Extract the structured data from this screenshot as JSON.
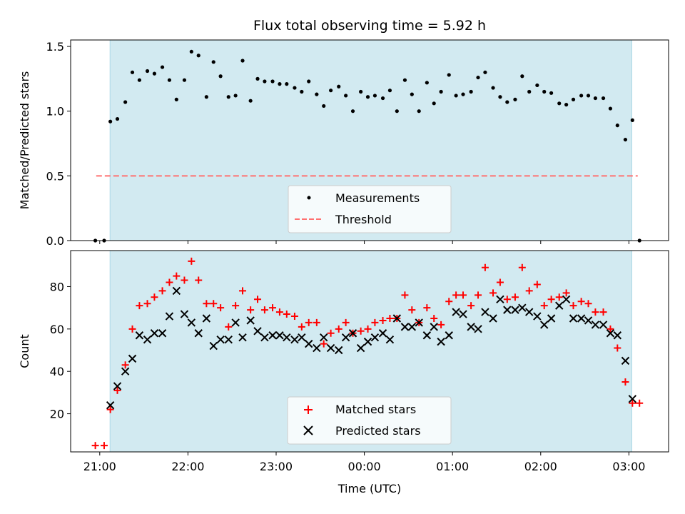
{
  "title": "Flux total observing time = 5.92 h",
  "colors": {
    "span": "#add8e6",
    "measurement": "#000000",
    "threshold": "#ff7070",
    "matched": "#ff0000",
    "predicted": "#000000"
  },
  "x_axis": {
    "label": "Time (UTC)",
    "ticks": [
      "21:00",
      "22:00",
      "23:00",
      "00:00",
      "01:00",
      "02:00",
      "03:00"
    ]
  },
  "chart_data": [
    {
      "type": "scatter",
      "ylabel": "Matched/Predicted stars",
      "ylim": [
        0,
        1.55
      ],
      "yticks": [
        "0.0",
        "0.5",
        "1.0",
        "1.5"
      ],
      "ytick_values": [
        0,
        0.5,
        1.0,
        1.5
      ],
      "x_unit": "hours since 21:00 UTC",
      "observing_span": [
        "21:07",
        "03:02"
      ],
      "threshold": 0.5,
      "legend": [
        "Measurements",
        "Threshold"
      ],
      "series": [
        {
          "name": "Measurements",
          "x": [
            -0.05,
            0.05,
            0.12,
            0.2,
            0.29,
            0.37,
            0.45,
            0.54,
            0.62,
            0.71,
            0.79,
            0.87,
            0.96,
            1.04,
            1.12,
            1.21,
            1.29,
            1.37,
            1.46,
            1.54,
            1.62,
            1.71,
            1.79,
            1.87,
            1.96,
            2.04,
            2.12,
            2.21,
            2.29,
            2.37,
            2.46,
            2.54,
            2.62,
            2.71,
            2.79,
            2.87,
            2.96,
            3.04,
            3.12,
            3.21,
            3.29,
            3.37,
            3.46,
            3.54,
            3.62,
            3.71,
            3.79,
            3.87,
            3.96,
            4.04,
            4.12,
            4.21,
            4.29,
            4.37,
            4.46,
            4.54,
            4.62,
            4.71,
            4.79,
            4.87,
            4.96,
            5.04,
            5.12,
            5.21,
            5.29,
            5.37,
            5.46,
            5.54,
            5.62,
            5.71,
            5.79,
            5.87,
            5.96,
            6.04,
            6.12
          ],
          "y": [
            0.0,
            0.0,
            0.92,
            0.94,
            1.07,
            1.3,
            1.24,
            1.31,
            1.29,
            1.34,
            1.24,
            1.09,
            1.24,
            1.46,
            1.43,
            1.11,
            1.38,
            1.27,
            1.11,
            1.12,
            1.39,
            1.08,
            1.25,
            1.23,
            1.23,
            1.21,
            1.21,
            1.18,
            1.15,
            1.23,
            1.13,
            1.04,
            1.16,
            1.19,
            1.12,
            1.0,
            1.15,
            1.11,
            1.12,
            1.1,
            1.16,
            1.0,
            1.24,
            1.13,
            1.0,
            1.22,
            1.06,
            1.15,
            1.28,
            1.12,
            1.13,
            1.15,
            1.26,
            1.3,
            1.18,
            1.11,
            1.07,
            1.09,
            1.27,
            1.15,
            1.2,
            1.15,
            1.14,
            1.06,
            1.05,
            1.09,
            1.12,
            1.12,
            1.1,
            1.1,
            1.02,
            0.89,
            0.78,
            0.93,
            0.0
          ]
        }
      ]
    },
    {
      "type": "scatter",
      "ylabel": "Count",
      "ylim": [
        2,
        97
      ],
      "yticks": [
        "20",
        "40",
        "60",
        "80"
      ],
      "ytick_values": [
        20,
        40,
        60,
        80
      ],
      "x_unit": "hours since 21:00 UTC",
      "observing_span": [
        "21:07",
        "03:02"
      ],
      "legend": [
        "Matched stars",
        "Predicted stars"
      ],
      "series": [
        {
          "name": "Matched stars",
          "x": [
            -0.05,
            0.05,
            0.12,
            0.2,
            0.29,
            0.37,
            0.45,
            0.54,
            0.62,
            0.71,
            0.79,
            0.87,
            0.96,
            1.04,
            1.12,
            1.21,
            1.29,
            1.37,
            1.46,
            1.54,
            1.62,
            1.71,
            1.79,
            1.87,
            1.96,
            2.04,
            2.12,
            2.21,
            2.29,
            2.37,
            2.46,
            2.54,
            2.62,
            2.71,
            2.79,
            2.87,
            2.96,
            3.04,
            3.12,
            3.21,
            3.29,
            3.37,
            3.46,
            3.54,
            3.62,
            3.71,
            3.79,
            3.87,
            3.96,
            4.04,
            4.12,
            4.21,
            4.29,
            4.37,
            4.46,
            4.54,
            4.62,
            4.71,
            4.79,
            4.87,
            4.96,
            5.04,
            5.12,
            5.21,
            5.29,
            5.37,
            5.46,
            5.54,
            5.62,
            5.71,
            5.79,
            5.87,
            5.96,
            6.04,
            6.12
          ],
          "y": [
            5,
            5,
            22,
            31,
            43,
            60,
            71,
            72,
            75,
            78,
            82,
            85,
            83,
            92,
            83,
            72,
            72,
            70,
            61,
            71,
            78,
            69,
            74,
            69,
            70,
            68,
            67,
            66,
            61,
            63,
            63,
            53,
            58,
            60,
            63,
            58,
            59,
            60,
            63,
            64,
            65,
            65,
            76,
            69,
            63,
            70,
            65,
            62,
            73,
            76,
            76,
            71,
            76,
            89,
            77,
            82,
            74,
            75,
            89,
            78,
            81,
            71,
            74,
            75,
            77,
            71,
            73,
            72,
            68,
            68,
            60,
            51,
            35,
            25,
            25
          ]
        },
        {
          "name": "Predicted stars",
          "x": [
            0.12,
            0.2,
            0.29,
            0.37,
            0.45,
            0.54,
            0.62,
            0.71,
            0.79,
            0.87,
            0.96,
            1.04,
            1.12,
            1.21,
            1.29,
            1.37,
            1.46,
            1.54,
            1.62,
            1.71,
            1.79,
            1.87,
            1.96,
            2.04,
            2.12,
            2.21,
            2.29,
            2.37,
            2.46,
            2.54,
            2.62,
            2.71,
            2.79,
            2.87,
            2.96,
            3.04,
            3.12,
            3.21,
            3.29,
            3.37,
            3.46,
            3.54,
            3.62,
            3.71,
            3.79,
            3.87,
            3.96,
            4.04,
            4.12,
            4.21,
            4.29,
            4.37,
            4.46,
            4.54,
            4.62,
            4.71,
            4.79,
            4.87,
            4.96,
            5.04,
            5.12,
            5.21,
            5.29,
            5.37,
            5.46,
            5.54,
            5.62,
            5.71,
            5.79,
            5.87,
            5.96,
            6.04
          ],
          "y": [
            24,
            33,
            40,
            46,
            57,
            55,
            58,
            58,
            66,
            78,
            67,
            63,
            58,
            65,
            52,
            55,
            55,
            63,
            56,
            64,
            59,
            56,
            57,
            57,
            56,
            55,
            56,
            53,
            51,
            56,
            51,
            50,
            56,
            58,
            51,
            54,
            56,
            58,
            55,
            65,
            61,
            61,
            63,
            57,
            61,
            54,
            57,
            68,
            67,
            61,
            60,
            68,
            65,
            74,
            69,
            69,
            70,
            68,
            66,
            62,
            65,
            71,
            74,
            65,
            65,
            64,
            62,
            62,
            58,
            57,
            45,
            27
          ]
        }
      ]
    }
  ]
}
